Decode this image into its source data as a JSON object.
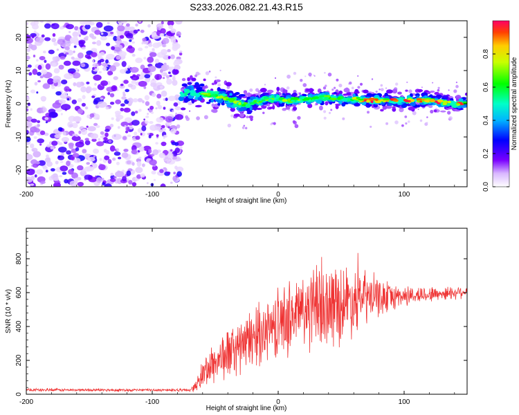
{
  "title": "S233.2026.082.21.43.R15",
  "colors": {
    "signal": "#ef3333",
    "frame": "#000000",
    "background": "#ffffff"
  },
  "chart_data": [
    {
      "type": "heatmap",
      "name": "spectrogram",
      "xlabel": "Height of straight line (km)",
      "ylabel": "Frequency (Hz)",
      "xlim": [
        -200,
        150
      ],
      "ylim": [
        -25,
        25
      ],
      "xticks": [
        -200,
        -100,
        0,
        100
      ],
      "yticks": [
        -20,
        -10,
        0,
        10,
        20
      ],
      "noise_region_x": [
        -200,
        -77
      ],
      "signal_start_x": -77,
      "ridge": {
        "x": [
          -77,
          -70,
          -60,
          -50,
          -40,
          -30,
          -20,
          -10,
          0,
          10,
          20,
          30,
          40,
          50,
          60,
          70,
          80,
          90,
          100,
          110,
          120,
          130,
          140,
          150
        ],
        "freq": [
          3,
          3.5,
          3,
          2.5,
          1.5,
          0,
          0,
          1.5,
          1.5,
          1,
          1.5,
          1.5,
          2,
          1.5,
          1.5,
          1,
          1,
          1,
          1,
          1,
          1,
          0.5,
          0,
          0
        ]
      },
      "colorbar": {
        "label": "Normalized spectral amplitude",
        "range": [
          0,
          1
        ],
        "ticks": [
          "0.0",
          "0.2",
          "0.4",
          "0.6",
          "0.8"
        ]
      }
    },
    {
      "type": "line",
      "name": "snr",
      "xlabel": "Height of straight line (km)",
      "ylabel": "SNR (10 * v/v)",
      "xlim": [
        -200,
        150
      ],
      "ylim": [
        0,
        980
      ],
      "xticks": [
        -200,
        -100,
        0,
        100
      ],
      "yticks": [
        0,
        200,
        400,
        600,
        800
      ],
      "series": [
        {
          "name": "SNR",
          "x": [
            -200,
            -150,
            -100,
            -70,
            -65,
            -60,
            -50,
            -40,
            -30,
            -20,
            -10,
            0,
            10,
            20,
            30,
            40,
            50,
            60,
            70,
            80,
            90,
            100,
            110,
            120,
            130,
            140,
            150
          ],
          "mean": [
            25,
            25,
            25,
            25,
            50,
            120,
            190,
            240,
            280,
            330,
            380,
            420,
            460,
            490,
            510,
            520,
            540,
            560,
            570,
            570,
            575,
            580,
            585,
            590,
            595,
            600,
            610
          ],
          "spread": [
            8,
            8,
            8,
            8,
            30,
            90,
            120,
            150,
            160,
            170,
            180,
            200,
            220,
            240,
            250,
            250,
            230,
            200,
            160,
            110,
            80,
            60,
            50,
            45,
            40,
            40,
            35
          ]
        }
      ]
    }
  ]
}
